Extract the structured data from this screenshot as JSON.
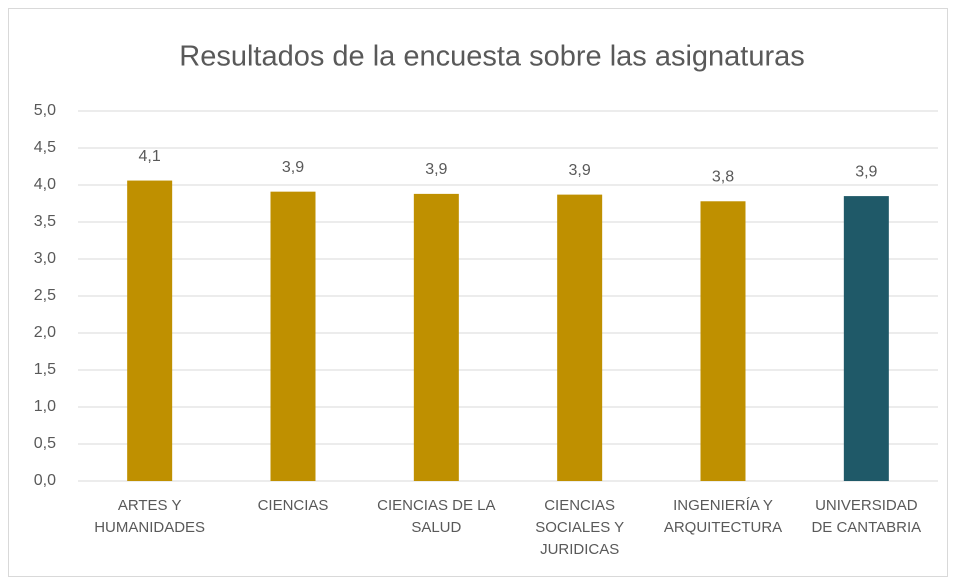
{
  "chart_data": {
    "type": "bar",
    "title": "Resultados de la encuesta sobre las asignaturas",
    "categories": [
      "ARTES Y HUMANIDADES",
      "CIENCIAS",
      "CIENCIAS DE LA SALUD",
      "CIENCIAS SOCIALES Y JURIDICAS",
      "INGENIERÍA Y ARQUITECTURA",
      "UNIVERSIDAD DE CANTABRIA"
    ],
    "values": [
      4.06,
      3.91,
      3.88,
      3.87,
      3.78,
      3.85
    ],
    "value_labels": [
      "4,1",
      "3,9",
      "3,9",
      "3,9",
      "3,8",
      "3,9"
    ],
    "colors": [
      "#bf9000",
      "#bf9000",
      "#bf9000",
      "#bf9000",
      "#bf9000",
      "#1f5968"
    ],
    "ylim": [
      0,
      5
    ],
    "yticks": [
      {
        "value": 0,
        "label": "0,0"
      },
      {
        "value": 0.5,
        "label": "0,5"
      },
      {
        "value": 1,
        "label": "1,0"
      },
      {
        "value": 1.5,
        "label": "1,5"
      },
      {
        "value": 2,
        "label": "2,0"
      },
      {
        "value": 2.5,
        "label": "2,5"
      },
      {
        "value": 3,
        "label": "3,0"
      },
      {
        "value": 3.5,
        "label": "3,5"
      },
      {
        "value": 4,
        "label": "4,0"
      },
      {
        "value": 4.5,
        "label": "4,5"
      },
      {
        "value": 5,
        "label": "5,0"
      }
    ],
    "grid": true
  }
}
